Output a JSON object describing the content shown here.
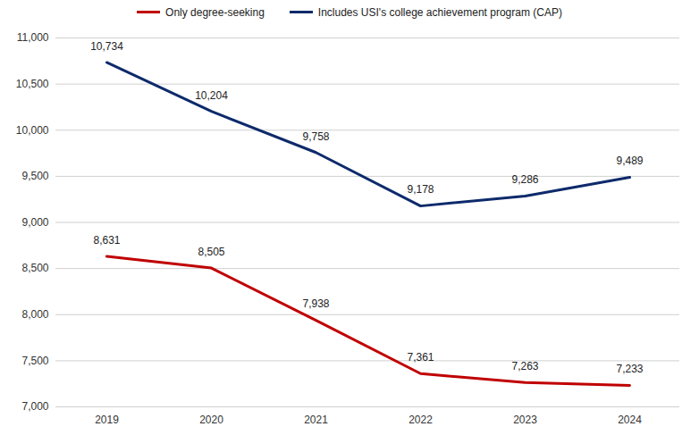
{
  "chart_data": {
    "type": "line",
    "categories": [
      "2019",
      "2020",
      "2021",
      "2022",
      "2023",
      "2024"
    ],
    "series": [
      {
        "name": "Only degree-seeking",
        "color": "#c00000",
        "values": [
          8631,
          8505,
          7938,
          7361,
          7263,
          7233
        ],
        "value_labels": [
          "8,631",
          "8,505",
          "7,938",
          "7,361",
          "7,263",
          "7,233"
        ]
      },
      {
        "name": "Includes USI's college achievement program (CAP)",
        "color": "#0d2a6b",
        "values": [
          10734,
          10204,
          9758,
          9178,
          9286,
          9489
        ],
        "value_labels": [
          "10,734",
          "10,204",
          "9,758",
          "9,178",
          "9,286",
          "9,489"
        ]
      }
    ],
    "ylim": [
      7000,
      11000
    ],
    "yticks": [
      {
        "value": 7000,
        "label": "7,000"
      },
      {
        "value": 7500,
        "label": "7,500"
      },
      {
        "value": 8000,
        "label": "8,000"
      },
      {
        "value": 8500,
        "label": "8,500"
      },
      {
        "value": 9000,
        "label": "9,000"
      },
      {
        "value": 9500,
        "label": "9,500"
      },
      {
        "value": 10000,
        "label": "10,000"
      },
      {
        "value": 10500,
        "label": "10,500"
      },
      {
        "value": 11000,
        "label": "11,000"
      }
    ],
    "grid": true,
    "data_labels": true,
    "legend": "top"
  }
}
